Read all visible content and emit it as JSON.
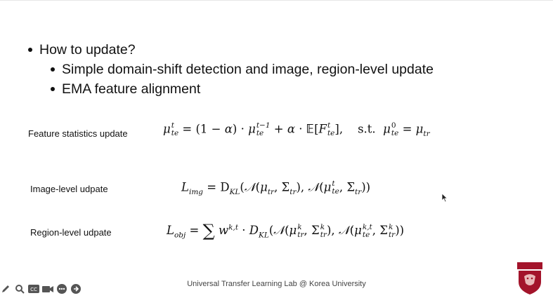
{
  "bullets": {
    "main": "How to update?",
    "sub": [
      "Simple domain-shift detection and image, region-level update",
      "EMA feature alignment"
    ]
  },
  "rows": {
    "feature": {
      "label": "Feature statistics update",
      "st": "s.t."
    },
    "image": {
      "label": "Image-level udpate"
    },
    "region": {
      "label": "Region-level udpate"
    }
  },
  "footer": "Universal Transfer Learning Lab @ Korea University",
  "logo": {
    "text": "KOREA UNIVERSITY"
  },
  "toolbar_icons": [
    "pen-icon",
    "search-icon",
    "cc-icon",
    "camera-icon",
    "more-icon",
    "forward-icon"
  ],
  "colors": {
    "logo_red": "#a3142b",
    "text": "#111111"
  }
}
